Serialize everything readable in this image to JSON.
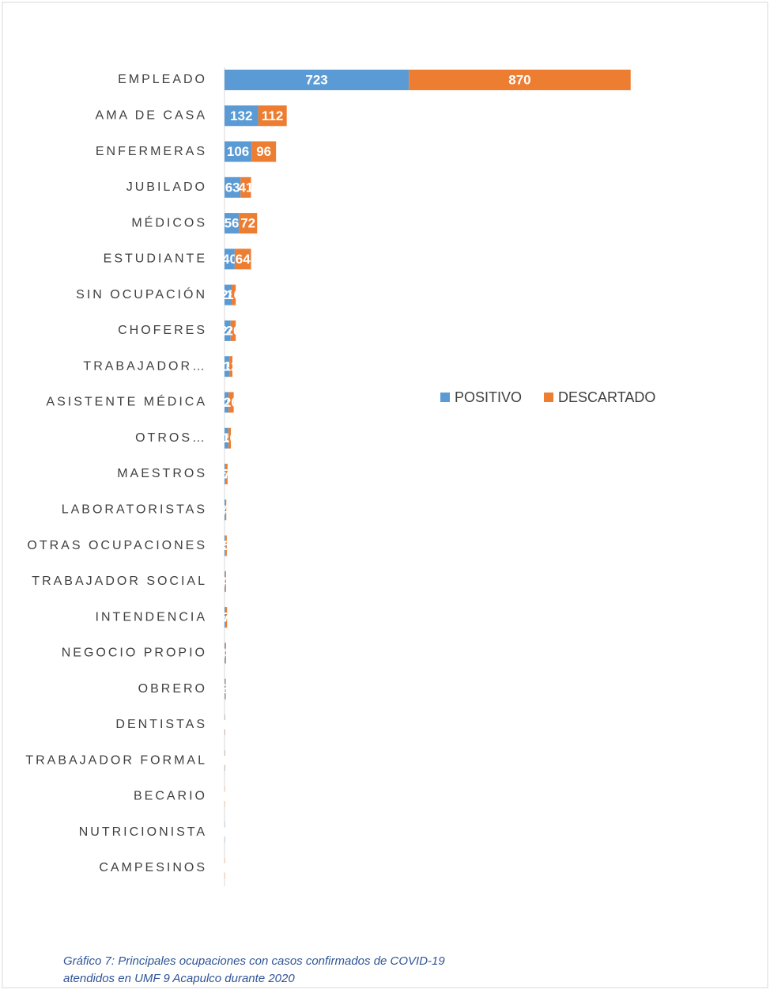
{
  "chart_data": {
    "type": "stacked_bar_horizontal",
    "categories": [
      "EMPLEADO",
      "AMA DE CASA",
      "ENFERMERAS",
      "JUBILADO",
      "MÉDICOS",
      "ESTUDIANTE",
      "SIN OCUPACIÓN",
      "CHOFERES",
      "TRABAJADOR…",
      "ASISTENTE MÉDICA",
      "OTROS…",
      "MAESTROS",
      "LABORATORISTAS",
      "OTRAS OCUPACIONES",
      "TRABAJADOR SOCIAL",
      "INTENDENCIA",
      "NEGOCIO PROPIO",
      "OBRERO",
      "DENTISTAS",
      "TRABAJADOR FORMAL",
      "BECARIO",
      "NUTRICIONISTA",
      "CAMPESINOS"
    ],
    "series": [
      {
        "name": "POSITIVO",
        "color": "#5b9bd5",
        "values": [
          723,
          132,
          106,
          63,
          56,
          40,
          28,
          24,
          19,
          16,
          15,
          5,
          3,
          4,
          2,
          3,
          2,
          2,
          1,
          1,
          0,
          1,
          0
        ]
      },
      {
        "name": "DESCARTADO",
        "color": "#ed7d31",
        "values": [
          870,
          112,
          96,
          41,
          72,
          64,
          16,
          20,
          12,
          20,
          10,
          7,
          4,
          5,
          4,
          7,
          4,
          3,
          1,
          1,
          1,
          0,
          1
        ]
      }
    ],
    "legend": "right",
    "caption": [
      "Gráfico 7: Principales ocupaciones con casos confirmados de COVID-19",
      "atendidos en UMF 9 Acapulco durante 2020"
    ]
  }
}
